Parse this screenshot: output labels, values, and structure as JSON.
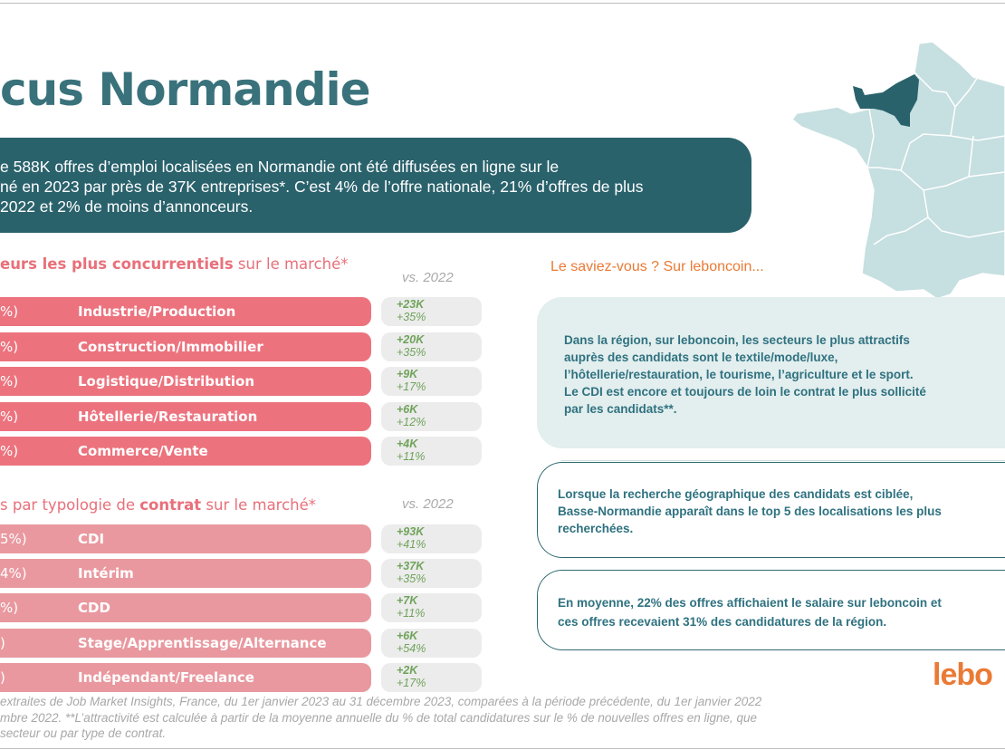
{
  "title": "cus Normandie",
  "intro": {
    "lines": [
      "e 588K offres d’emploi localisées en Normandie ont été diffusées en ligne sur le",
      "né en 2023 par près de 37K entreprises*. C’est 4% de l’offre nationale, 21% d’offres de plus",
      " 2022 et 2% de moins d’annonceurs."
    ]
  },
  "sectors": {
    "heading_bold": "eurs les plus concurrentiels",
    "heading_rest": " sur le marché*",
    "vs": "vs. 2022",
    "rows": [
      {
        "pct": "%)",
        "label": "Industrie/Production",
        "abs": "+23K",
        "rel": "+35%"
      },
      {
        "pct": "%)",
        "label": "Construction/Immobilier",
        "abs": "+20K",
        "rel": "+35%"
      },
      {
        "pct": "%)",
        "label": "Logistique/Distribution",
        "abs": "+9K",
        "rel": "+17%"
      },
      {
        "pct": "%)",
        "label": "Hôtellerie/Restauration",
        "abs": "+6K",
        "rel": "+12%"
      },
      {
        "pct": "%)",
        "label": "Commerce/Vente",
        "abs": "+4K",
        "rel": "+11%"
      }
    ]
  },
  "contracts": {
    "heading_pre": "s par typologie de ",
    "heading_bold": "contrat",
    "heading_rest": " sur le marché*",
    "vs": "vs. 2022",
    "rows": [
      {
        "pct": "5%)",
        "label": "CDI",
        "abs": "+93K",
        "rel": "+41%"
      },
      {
        "pct": "4%)",
        "label": "Intérim",
        "abs": "+37K",
        "rel": "+35%"
      },
      {
        "pct": "%)",
        "label": "CDD",
        "abs": "+7K",
        "rel": "+11%"
      },
      {
        "pct": ")",
        "label": "Stage/Apprentissage/Alternance",
        "abs": "+6K",
        "rel": "+54%"
      },
      {
        "pct": ")",
        "label": "Indépendant/Freelance",
        "abs": "+2K",
        "rel": "+17%"
      }
    ]
  },
  "footnote": [
    "extraites de Job Market Insights, France, du 1er janvier 2023 au 31 décembre 2023, comparées à la période précédente, du 1er janvier 2022",
    "mbre 2022. **L’attractivité est calculée à partir de la moyenne annuelle du % de total candidatures sur le % de nouvelles offres en ligne, que",
    "secteur ou par type de contrat."
  ],
  "saviez": "Le saviez-vous ? Sur leboncoin...",
  "box1": [
    "Dans la région, sur leboncoin, les secteurs le plus attractifs",
    "auprès des candidats sont le textile/mode/luxe,",
    "l’hôtellerie/restauration, le tourisme, l’agriculture et le sport.",
    "Le CDI est encore et toujours de loin le contrat le plus sollicité",
    "par les candidats**."
  ],
  "box2": [
    "Lorsque la recherche géographique des candidats est ciblée,",
    "Basse-Normandie apparaît dans le top 5 des localisations les plus",
    "recherchées."
  ],
  "box3": [
    "En moyenne, 22% des offres affichaient le salaire sur leboncoin et",
    "ces offres recevaient 31% des candidatures de la région."
  ],
  "logo": "leboncoin",
  "logo_visible": "lebo",
  "colors": {
    "teal": "#2a626c",
    "pink": "#ec737e",
    "pink_light": "#e9989f",
    "green": "#6fa35a",
    "orange": "#ea7a35"
  }
}
